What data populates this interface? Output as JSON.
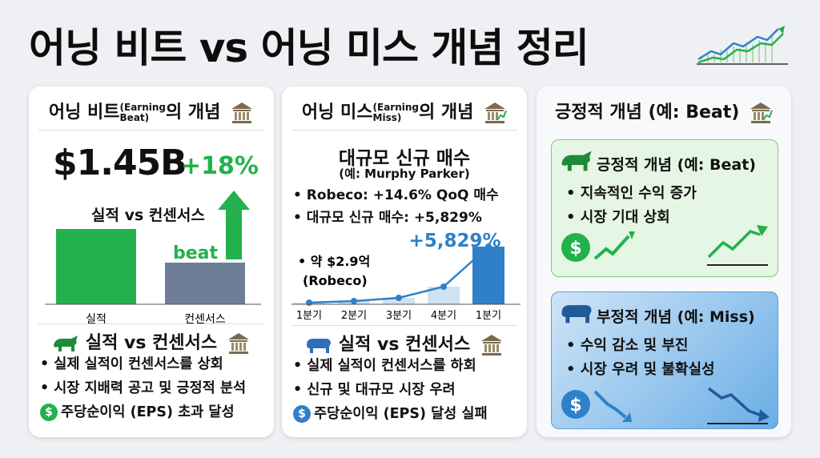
{
  "title": "어닝 비트 vs 어닝 미스 개념 정리",
  "card1": {
    "head_main": "어닝 비트",
    "head_small_1": "(Earning",
    "head_small_2": "Beat)",
    "head_suffix": "의 개념",
    "big_number": "$1.45B",
    "growth": "+18%",
    "compare_label": "실적 vs 컨센서스",
    "beat_label": "beat",
    "bar_labels": [
      "실적",
      "컨센서스"
    ],
    "section_title": "실적 vs 컨센서스",
    "bullets": [
      "• 실제 실적이 컨센서스를 상회",
      "• 시장 지배력 공고 및 긍정적 분석"
    ],
    "eps_line": "주당순이익 (EPS) 초과 달성",
    "colors": {
      "bar_actual": "#22b14c",
      "bar_consensus": "#6e7e96",
      "accent": "#22b14c"
    }
  },
  "card2": {
    "head_main": "어닝 미스",
    "head_small_1": "(Earning",
    "head_small_2": "Miss)",
    "head_suffix": "의 개념",
    "subtitle": "대규모 신규 매수",
    "subtitle2": "(예: Murphy Parker)",
    "bullets": [
      "• Robeco: +14.6% QoQ 매수",
      "• 대규모 신규 매수: +5,829%"
    ],
    "chart_callout": "+5,829%",
    "chart_note_1": "• 약 $2.9억",
    "chart_note_2": "(Robeco)",
    "section_title": "실적 vs 컨센서스",
    "bottom_bullets": [
      "• 실제 실적이 컨센서스를 하회",
      "• 신규 및 대규모 시장 우려"
    ],
    "eps_line": "주당순이익 (EPS) 달성 실패",
    "colors": {
      "accent": "#2f80c8",
      "bar_last": "#2f80c8",
      "bar_light": "#cfe2f3"
    }
  },
  "card3": {
    "head": "긍정적 개념 (예: Beat)",
    "positive_title": "긍정적 개념 (예: Beat)",
    "positive_bullets": [
      "• 지속적인 수익 증가",
      "• 시장 기대 상회"
    ],
    "negative_title": "부정적 개념 (예: Miss)",
    "negative_bullets": [
      "• 수익 감소 및 부진",
      "• 시장 우려 및 불확실성"
    ]
  },
  "chart_data": {
    "type": "bar",
    "categories": [
      "1분기",
      "2분기",
      "3분기",
      "4분기",
      "1분기"
    ],
    "values": [
      2,
      4,
      8,
      22,
      72
    ],
    "ylim": [
      0,
      80
    ]
  }
}
